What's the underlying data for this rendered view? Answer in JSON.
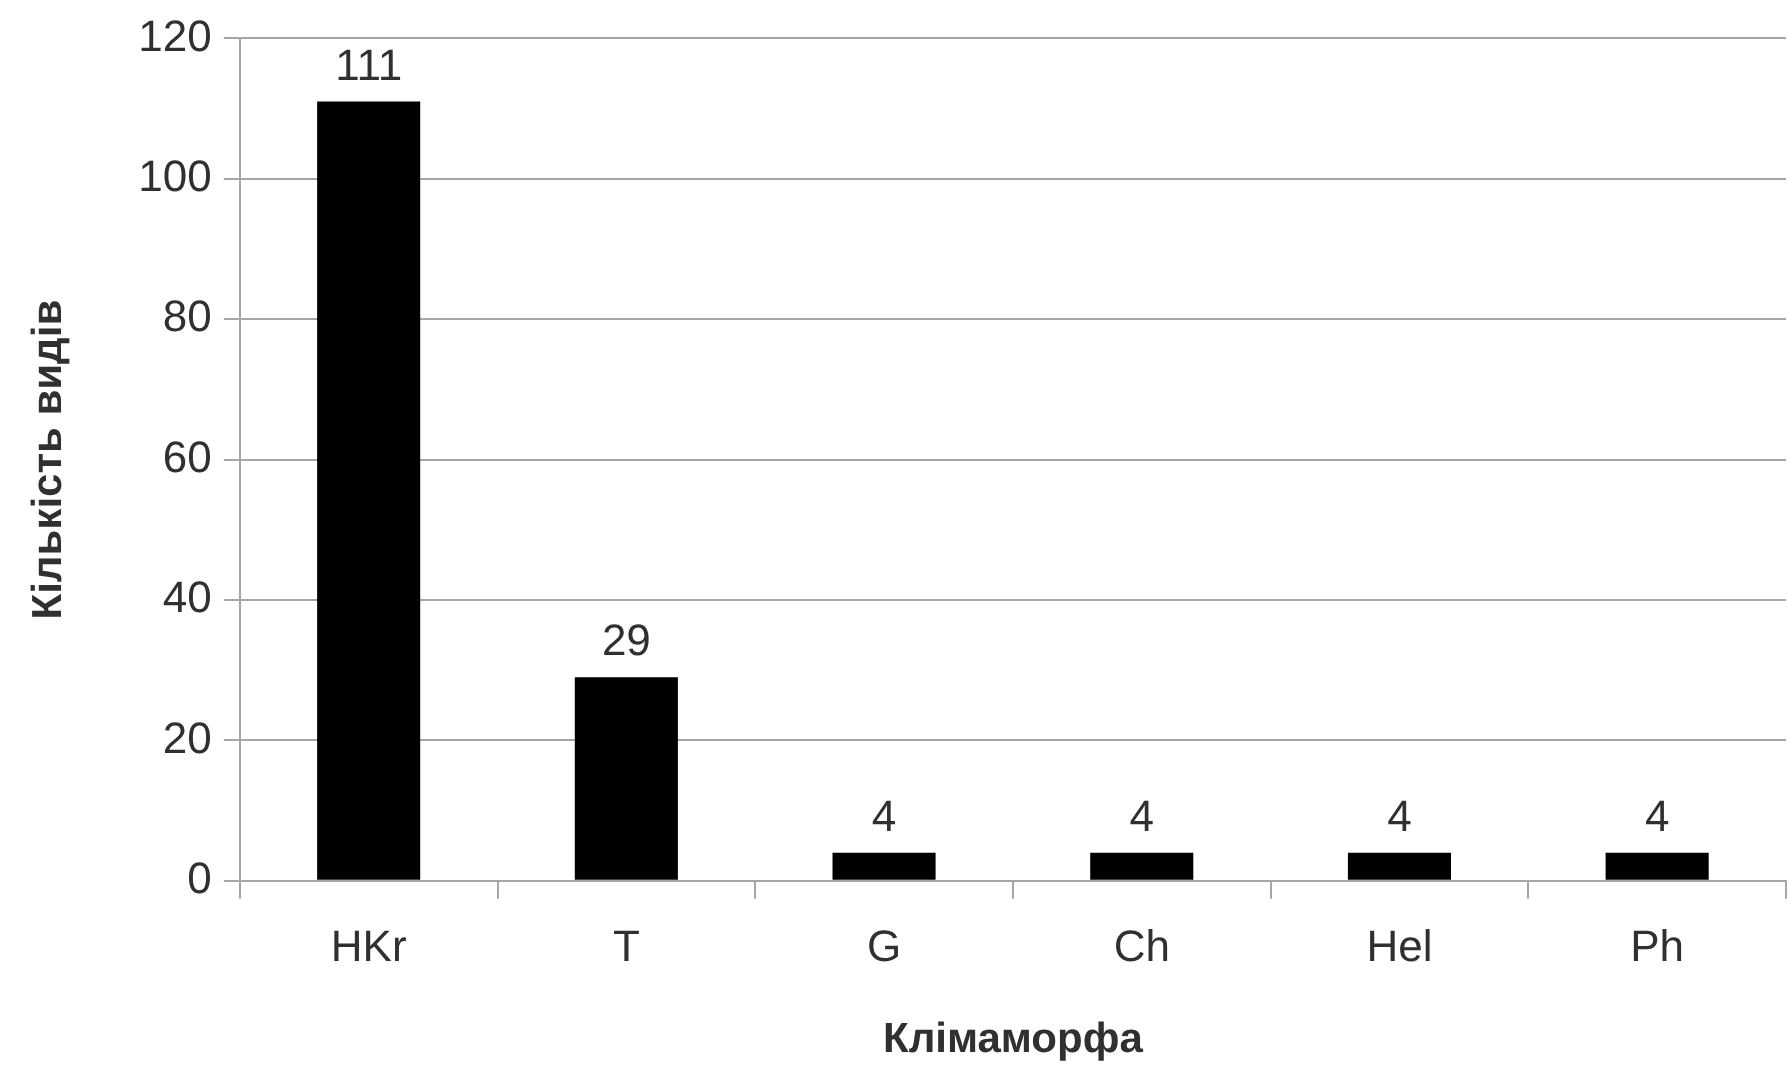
{
  "chart_data": {
    "type": "bar",
    "xlabel": "Клімаморфа",
    "ylabel": "Кількість видів",
    "categories": [
      "HKr",
      "T",
      "G",
      "Ch",
      "Hel",
      "Ph"
    ],
    "values": [
      111,
      29,
      4,
      4,
      4,
      4
    ],
    "color": "#000000",
    "ylim": [
      0,
      120
    ],
    "yticks": [
      0,
      20,
      40,
      60,
      80,
      100,
      120
    ],
    "grid": "y",
    "legend": false,
    "data_labels": true
  }
}
